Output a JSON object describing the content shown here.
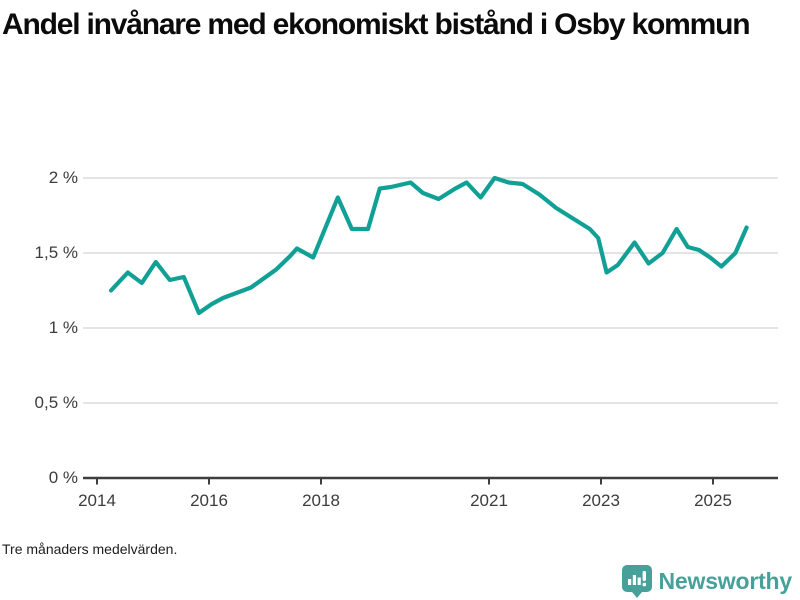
{
  "title": "Andel invånare med ekonomiskt bistånd i Osby kommun",
  "note": "Tre månaders medelvärden.",
  "logo": {
    "text": "Newsworthy",
    "icon": "bar-chart-speech-bubble-icon"
  },
  "colors": {
    "line": "#10a095",
    "grid": "#dcdcdc",
    "axis": "#3e3e3e",
    "tick_label": "#3c3c3c",
    "title_text": "#0b0b0b",
    "logo_teal": "#47a09a"
  },
  "chart_data": {
    "type": "line",
    "title": "Andel invånare med ekonomiskt bistånd i Osby kommun",
    "xlabel": "",
    "ylabel": "",
    "unit": "%",
    "grid": "horizontal",
    "legend_position": "none",
    "xlim": [
      2013.75,
      2026.16
    ],
    "ylim": [
      0,
      2.07
    ],
    "y_ticks": [
      {
        "value": 0,
        "label": "0 %"
      },
      {
        "value": 0.5,
        "label": "0,5 %"
      },
      {
        "value": 1,
        "label": "1 %"
      },
      {
        "value": 1.5,
        "label": "1,5 %"
      },
      {
        "value": 2,
        "label": "2 %"
      }
    ],
    "x_ticks": [
      {
        "value": 2014,
        "label": "2014"
      },
      {
        "value": 2016,
        "label": "2016"
      },
      {
        "value": 2018,
        "label": "2018"
      },
      {
        "value": 2021,
        "label": "2021"
      },
      {
        "value": 2023,
        "label": "2023"
      },
      {
        "value": 2025,
        "label": "2025"
      }
    ],
    "series": [
      {
        "name": "Andel invånare med ekonomiskt bistånd",
        "color": "#10a095",
        "points": [
          [
            2014.25,
            1.25
          ],
          [
            2014.55,
            1.37
          ],
          [
            2014.8,
            1.3
          ],
          [
            2015.05,
            1.44
          ],
          [
            2015.3,
            1.32
          ],
          [
            2015.55,
            1.34
          ],
          [
            2015.82,
            1.1
          ],
          [
            2016.05,
            1.16
          ],
          [
            2016.25,
            1.2
          ],
          [
            2016.75,
            1.27
          ],
          [
            2017.2,
            1.39
          ],
          [
            2017.45,
            1.48
          ],
          [
            2017.57,
            1.53
          ],
          [
            2017.86,
            1.47
          ],
          [
            2018.3,
            1.87
          ],
          [
            2018.55,
            1.66
          ],
          [
            2018.84,
            1.66
          ],
          [
            2019.05,
            1.93
          ],
          [
            2019.25,
            1.94
          ],
          [
            2019.6,
            1.97
          ],
          [
            2019.82,
            1.9
          ],
          [
            2020.1,
            1.86
          ],
          [
            2020.4,
            1.93
          ],
          [
            2020.6,
            1.97
          ],
          [
            2020.85,
            1.87
          ],
          [
            2021.1,
            2.0
          ],
          [
            2021.35,
            1.97
          ],
          [
            2021.6,
            1.96
          ],
          [
            2021.9,
            1.89
          ],
          [
            2022.2,
            1.8
          ],
          [
            2022.5,
            1.73
          ],
          [
            2022.8,
            1.66
          ],
          [
            2022.95,
            1.6
          ],
          [
            2023.1,
            1.37
          ],
          [
            2023.3,
            1.42
          ],
          [
            2023.6,
            1.57
          ],
          [
            2023.85,
            1.43
          ],
          [
            2024.1,
            1.5
          ],
          [
            2024.35,
            1.66
          ],
          [
            2024.55,
            1.54
          ],
          [
            2024.75,
            1.52
          ],
          [
            2024.95,
            1.47
          ],
          [
            2025.15,
            1.41
          ],
          [
            2025.4,
            1.5
          ],
          [
            2025.6,
            1.67
          ]
        ]
      }
    ]
  }
}
